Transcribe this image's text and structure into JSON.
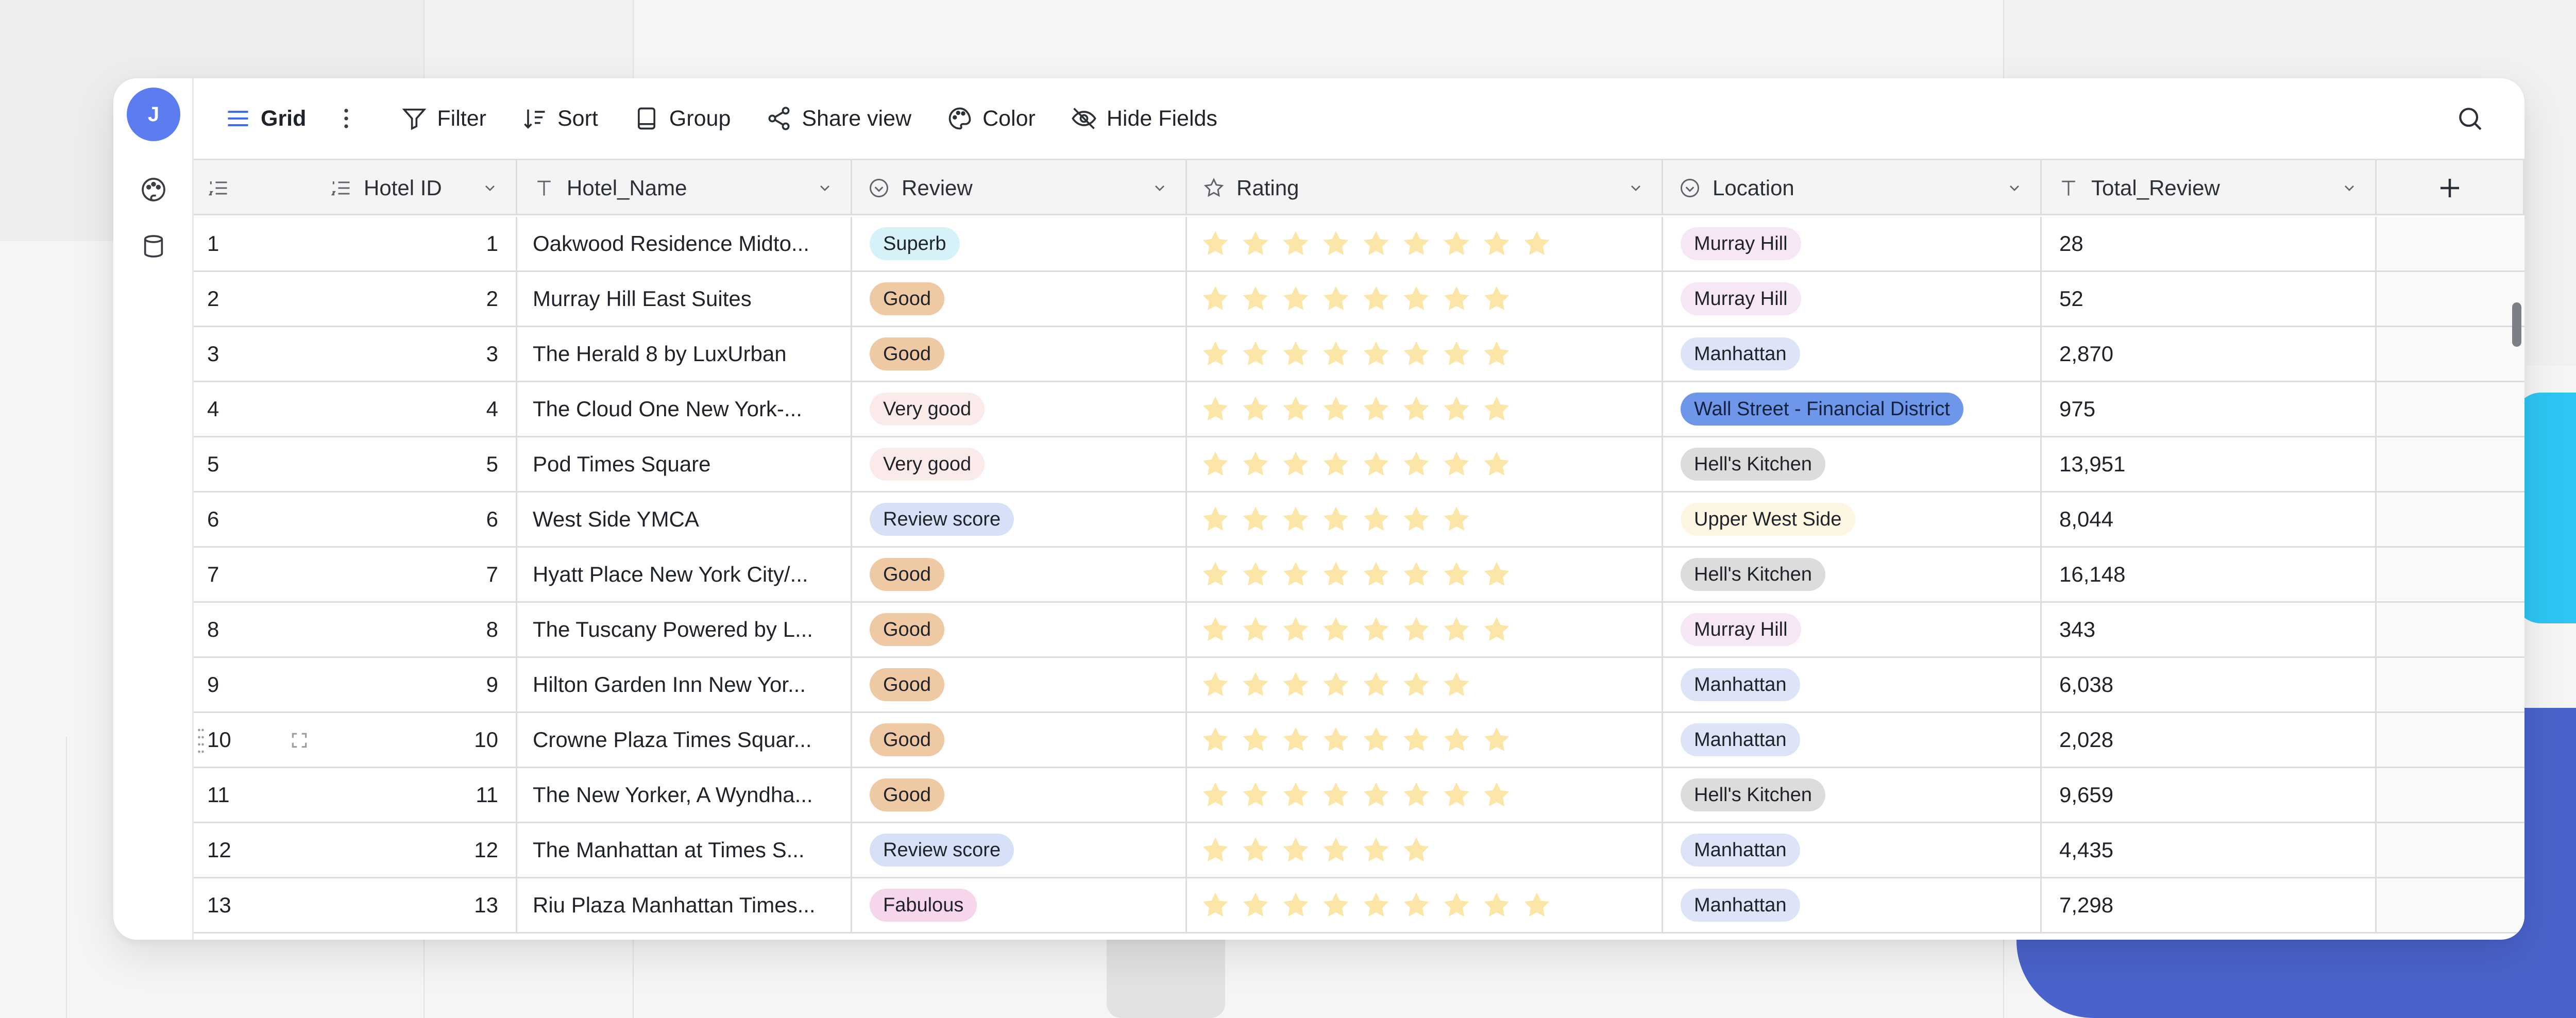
{
  "sidebar": {
    "avatar_letter": "J"
  },
  "toolbar": {
    "view_label": "Grid",
    "filter_label": "Filter",
    "sort_label": "Sort",
    "group_label": "Group",
    "share_label": "Share view",
    "color_label": "Color",
    "hide_label": "Hide Fields"
  },
  "columns": {
    "hotel_id": "Hotel ID",
    "hotel_name": "Hotel_Name",
    "review": "Review",
    "rating": "Rating",
    "location": "Location",
    "total_review": "Total_Review"
  },
  "pill_colors": {
    "Superb": "#d6f2f8",
    "Good": "#efc9a4",
    "Very good": "#fbeaea",
    "Review score": "#d6e0f6",
    "Fabulous": "#f6d6ec",
    "Murray Hill": "#f7e7f6",
    "Manhattan": "#dde4f8",
    "Wall Street - Financial District": "#6e97ea",
    "Hell's Kitchen": "#dcdcdc",
    "Upper West Side": "#fcf6e2"
  },
  "star_color": "#fbe6a8",
  "rows": [
    {
      "num": "1",
      "id": "1",
      "name": "Oakwood Residence Midto...",
      "review": "Superb",
      "stars": 9,
      "location": "Murray Hill",
      "total": "28"
    },
    {
      "num": "2",
      "id": "2",
      "name": "Murray Hill East Suites",
      "review": "Good",
      "stars": 8,
      "location": "Murray Hill",
      "total": "52"
    },
    {
      "num": "3",
      "id": "3",
      "name": "The Herald 8 by LuxUrban",
      "review": "Good",
      "stars": 8,
      "location": "Manhattan",
      "total": "2,870"
    },
    {
      "num": "4",
      "id": "4",
      "name": "The Cloud One New York-...",
      "review": "Very good",
      "stars": 8,
      "location": "Wall Street - Financial District",
      "total": "975"
    },
    {
      "num": "5",
      "id": "5",
      "name": "Pod Times Square",
      "review": "Very good",
      "stars": 8,
      "location": "Hell's Kitchen",
      "total": "13,951"
    },
    {
      "num": "6",
      "id": "6",
      "name": "West Side YMCA",
      "review": "Review score",
      "stars": 7,
      "location": "Upper West Side",
      "total": "8,044"
    },
    {
      "num": "7",
      "id": "7",
      "name": "Hyatt Place New York City/...",
      "review": "Good",
      "stars": 8,
      "location": "Hell's Kitchen",
      "total": "16,148"
    },
    {
      "num": "8",
      "id": "8",
      "name": "The Tuscany Powered by L...",
      "review": "Good",
      "stars": 8,
      "location": "Murray Hill",
      "total": "343"
    },
    {
      "num": "9",
      "id": "9",
      "name": "Hilton Garden Inn New Yor...",
      "review": "Good",
      "stars": 7,
      "location": "Manhattan",
      "total": "6,038"
    },
    {
      "num": "10",
      "id": "10",
      "name": "Crowne Plaza Times Squar...",
      "review": "Good",
      "stars": 8,
      "location": "Manhattan",
      "total": "2,028"
    },
    {
      "num": "11",
      "id": "11",
      "name": "The New Yorker, A Wyndha...",
      "review": "Good",
      "stars": 8,
      "location": "Hell's Kitchen",
      "total": "9,659"
    },
    {
      "num": "12",
      "id": "12",
      "name": "The Manhattan at Times S...",
      "review": "Review score",
      "stars": 6,
      "location": "Manhattan",
      "total": "4,435"
    },
    {
      "num": "13",
      "id": "13",
      "name": "Riu Plaza Manhattan Times...",
      "review": "Fabulous",
      "stars": 9,
      "location": "Manhattan",
      "total": "7,298"
    }
  ]
}
